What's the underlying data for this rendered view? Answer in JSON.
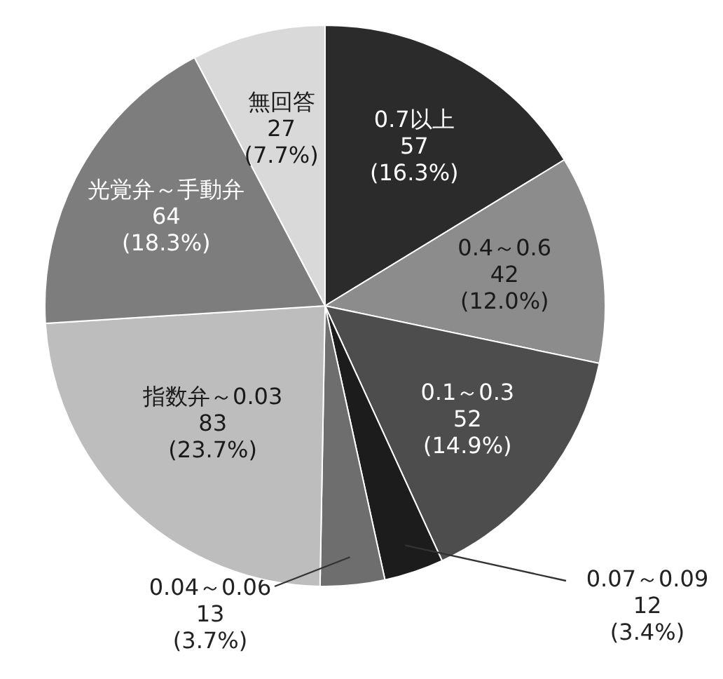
{
  "chart_data": {
    "type": "pie",
    "categories": [
      "0.7以上",
      "0.4～0.6",
      "0.1～0.3",
      "0.07～0.09",
      "0.04～0.06",
      "指数弁～0.03",
      "光覚弁～手動弁",
      "無回答"
    ],
    "values": [
      57,
      42,
      52,
      12,
      13,
      83,
      64,
      27
    ],
    "value_labels": [
      "57 (16.3%)",
      "42 (12.0%)",
      "52 (14.9%)",
      "12 (3.4%)",
      "13 (3.7%)",
      "83 (23.7%)",
      "64 (18.3%)",
      "27 (7.7%)"
    ],
    "colors": [
      "#2b2b2b",
      "#8c8c8c",
      "#4d4d4d",
      "#1c1c1c",
      "#6e6e6e",
      "#bdbdbd",
      "#7d7d7d",
      "#d9d9d9"
    ]
  }
}
